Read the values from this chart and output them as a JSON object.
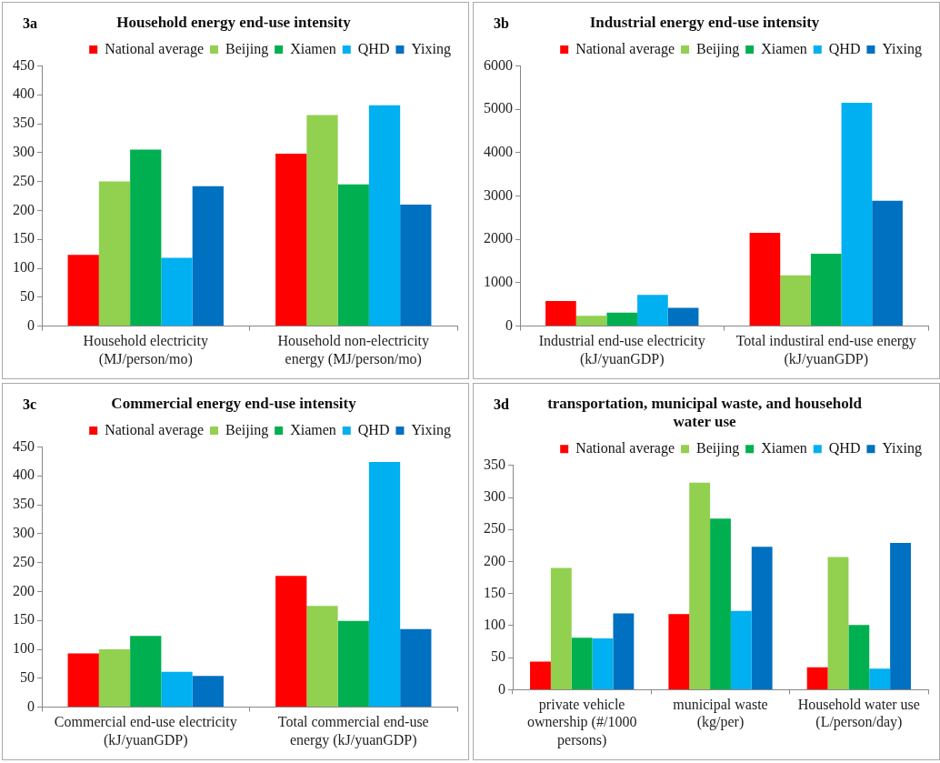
{
  "chart_data": [
    {
      "type": "bar",
      "title": "Household energy end-use intensity",
      "annotations": [
        "3a"
      ],
      "categories": [
        "Household electricity (MJ/person/mo)",
        "Household non-electricity energy (MJ/person/mo)"
      ],
      "legend": "top",
      "grid": false,
      "ylim": [
        0,
        450
      ],
      "yticks": [
        0,
        50,
        100,
        150,
        200,
        250,
        300,
        350,
        400,
        450
      ],
      "series": [
        {
          "name": "National average",
          "color": "#ff0000",
          "values": [
            123,
            298
          ]
        },
        {
          "name": "Beijing",
          "color": "#92d050",
          "values": [
            250,
            365
          ]
        },
        {
          "name": "Xiamen",
          "color": "#00b050",
          "values": [
            305,
            245
          ]
        },
        {
          "name": "QHD",
          "color": "#00b0f0",
          "values": [
            118,
            382
          ]
        },
        {
          "name": "Yixing",
          "color": "#0070c0",
          "values": [
            242,
            210
          ]
        }
      ]
    },
    {
      "type": "bar",
      "title": "Industrial energy end-use intensity",
      "annotations": [
        "3b"
      ],
      "categories": [
        "Industrial end-use electricity (kJ/yuanGDP)",
        "Total industiral end-use energy (kJ/yuanGDP)"
      ],
      "legend": "top",
      "grid": false,
      "ylim": [
        0,
        6000
      ],
      "yticks": [
        0,
        1000,
        2000,
        3000,
        4000,
        5000,
        6000
      ],
      "series": [
        {
          "name": "National average",
          "color": "#ff0000",
          "values": [
            580,
            2150
          ]
        },
        {
          "name": "Beijing",
          "color": "#92d050",
          "values": [
            240,
            1170
          ]
        },
        {
          "name": "Xiamen",
          "color": "#00b050",
          "values": [
            310,
            1670
          ]
        },
        {
          "name": "QHD",
          "color": "#00b0f0",
          "values": [
            720,
            5150
          ]
        },
        {
          "name": "Yixing",
          "color": "#0070c0",
          "values": [
            420,
            2890
          ]
        }
      ]
    },
    {
      "type": "bar",
      "title": "Commercial energy end-use intensity",
      "annotations": [
        "3c"
      ],
      "categories": [
        "Commercial end-use electricity (kJ/yuanGDP)",
        "Total commercial end-use energy (kJ/yuanGDP)"
      ],
      "legend": "top",
      "grid": false,
      "ylim": [
        0,
        450
      ],
      "yticks": [
        0,
        50,
        100,
        150,
        200,
        250,
        300,
        350,
        400,
        450
      ],
      "series": [
        {
          "name": "National average",
          "color": "#ff0000",
          "values": [
            93,
            227
          ]
        },
        {
          "name": "Beijing",
          "color": "#92d050",
          "values": [
            100,
            175
          ]
        },
        {
          "name": "Xiamen",
          "color": "#00b050",
          "values": [
            123,
            149
          ]
        },
        {
          "name": "QHD",
          "color": "#00b0f0",
          "values": [
            61,
            424
          ]
        },
        {
          "name": "Yixing",
          "color": "#0070c0",
          "values": [
            54,
            135
          ]
        }
      ]
    },
    {
      "type": "bar",
      "title": "transportation, municipal waste, and household water use",
      "annotations": [
        "3d"
      ],
      "categories": [
        "private vehicle ownership (#/1000 persons)",
        "municipal waste (kg/per)",
        "Household water use (L/person/day)"
      ],
      "legend": "top",
      "grid": false,
      "ylim": [
        0,
        350
      ],
      "yticks": [
        0,
        50,
        100,
        150,
        200,
        250,
        300,
        350
      ],
      "series": [
        {
          "name": "National average",
          "color": "#ff0000",
          "values": [
            44,
            118,
            35
          ]
        },
        {
          "name": "Beijing",
          "color": "#92d050",
          "values": [
            190,
            323,
            207
          ]
        },
        {
          "name": "Xiamen",
          "color": "#00b050",
          "values": [
            81,
            267,
            101
          ]
        },
        {
          "name": "QHD",
          "color": "#00b0f0",
          "values": [
            80,
            123,
            33
          ]
        },
        {
          "name": "Yixing",
          "color": "#0070c0",
          "values": [
            119,
            223,
            229
          ]
        }
      ]
    }
  ]
}
